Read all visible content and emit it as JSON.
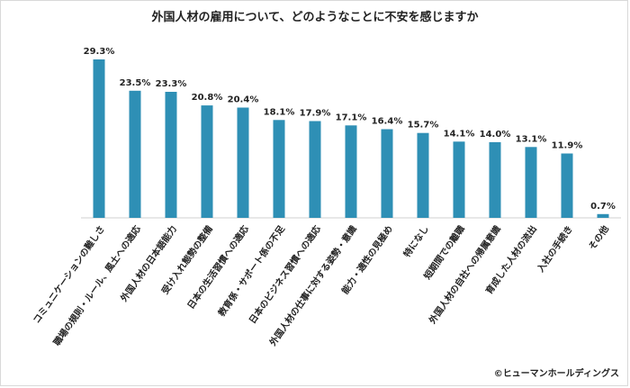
{
  "chart_data": {
    "type": "bar",
    "title": "外国人材の雇用について、どのようなことに不安を感じますか",
    "categories": [
      "コミュニケーションの難しさ",
      "職場の規則・ルール、風土への適応",
      "外国人材の日本語能力",
      "受け入れ態勢の整備",
      "日本の生活習慣への適応",
      "教育係・サポート係の不足",
      "日本のビジネス習慣への適応",
      "外国人材の仕事に対する姿勢・意識",
      "能力・適性の見極め",
      "特になし",
      "短期間での離職",
      "外国人材の自社への帰属意識",
      "育成した人材の流出",
      "入社の手続き",
      "その他"
    ],
    "values": [
      29.3,
      23.5,
      23.3,
      20.8,
      20.4,
      18.1,
      17.9,
      17.1,
      16.4,
      15.7,
      14.1,
      14.0,
      13.1,
      11.9,
      0.7
    ],
    "value_labels": [
      "29.3%",
      "23.5%",
      "23.3%",
      "20.8%",
      "20.4%",
      "18.1%",
      "17.9%",
      "17.1%",
      "16.4%",
      "15.7%",
      "14.1%",
      "14.0%",
      "13.1%",
      "11.9%",
      "0.7%"
    ],
    "ylim": [
      0,
      30
    ],
    "grid": false,
    "bar_color": "#2e8fb5"
  },
  "copyright": "©ヒューマンホールディングス"
}
